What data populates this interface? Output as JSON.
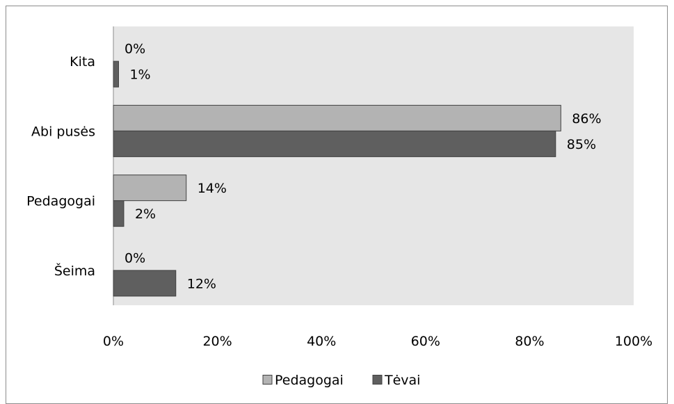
{
  "chart_data": {
    "type": "bar",
    "orientation": "horizontal",
    "title": "",
    "xlabel": "",
    "ylabel": "",
    "categories": [
      "Kita",
      "Abi pusės",
      "Pedagogai",
      "Šeima"
    ],
    "series": [
      {
        "name": "Pedagogai",
        "values": [
          0,
          86,
          14,
          0
        ],
        "labels": [
          "0%",
          "86%",
          "14%",
          "0%"
        ],
        "color": "#b3b3b3"
      },
      {
        "name": "Tėvai",
        "values": [
          1,
          85,
          2,
          12
        ],
        "labels": [
          "1%",
          "85%",
          "2%",
          "12%"
        ],
        "color": "#5f5f5f"
      }
    ],
    "xlim": [
      0,
      100
    ],
    "x_ticks": [
      "0%",
      "20%",
      "40%",
      "60%",
      "80%",
      "100%"
    ],
    "grid": false,
    "plot_background": "#e6e6e6",
    "legend_position": "bottom"
  }
}
